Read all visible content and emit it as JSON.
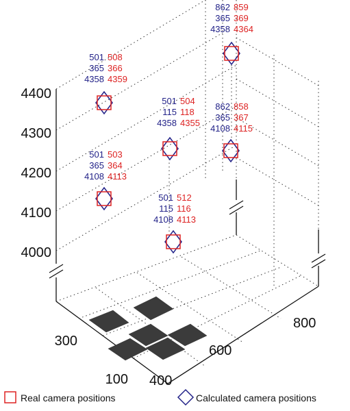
{
  "chart_data": {
    "type": "scatter",
    "projection": "3d",
    "title": "",
    "xlabel": "",
    "ylabel": "",
    "zlabel": "",
    "z_ticks": [
      "4000",
      "4100",
      "4200",
      "4300",
      "4400"
    ],
    "x_ticks": [
      "100",
      "300"
    ],
    "y_ticks": [
      "400",
      "600",
      "800"
    ],
    "axis_breaks": true,
    "grid": true,
    "floor_pattern": "checkerboard",
    "legend_position": "bottom",
    "colors": {
      "real": "#dd2222",
      "calculated": "#222288"
    },
    "series": [
      {
        "name": "Real camera positions",
        "marker": "square",
        "color": "#dd2222"
      },
      {
        "name": "Calculated camera positions",
        "marker": "diamond",
        "color": "#222288"
      }
    ],
    "points": [
      {
        "calc": [
          "862",
          "365",
          "4358"
        ],
        "real": [
          "859",
          "369",
          "4364"
        ]
      },
      {
        "calc": [
          "501",
          "365",
          "4358"
        ],
        "real": [
          "508",
          "366",
          "4359"
        ]
      },
      {
        "calc": [
          "501",
          "115",
          "4358"
        ],
        "real": [
          "504",
          "118",
          "4355"
        ]
      },
      {
        "calc": [
          "862",
          "365",
          "4108"
        ],
        "real": [
          "858",
          "367",
          "4115"
        ]
      },
      {
        "calc": [
          "501",
          "365",
          "4108"
        ],
        "real": [
          "503",
          "364",
          "4113"
        ]
      },
      {
        "calc": [
          "501",
          "115",
          "4108"
        ],
        "real": [
          "512",
          "116",
          "4113"
        ]
      }
    ]
  }
}
